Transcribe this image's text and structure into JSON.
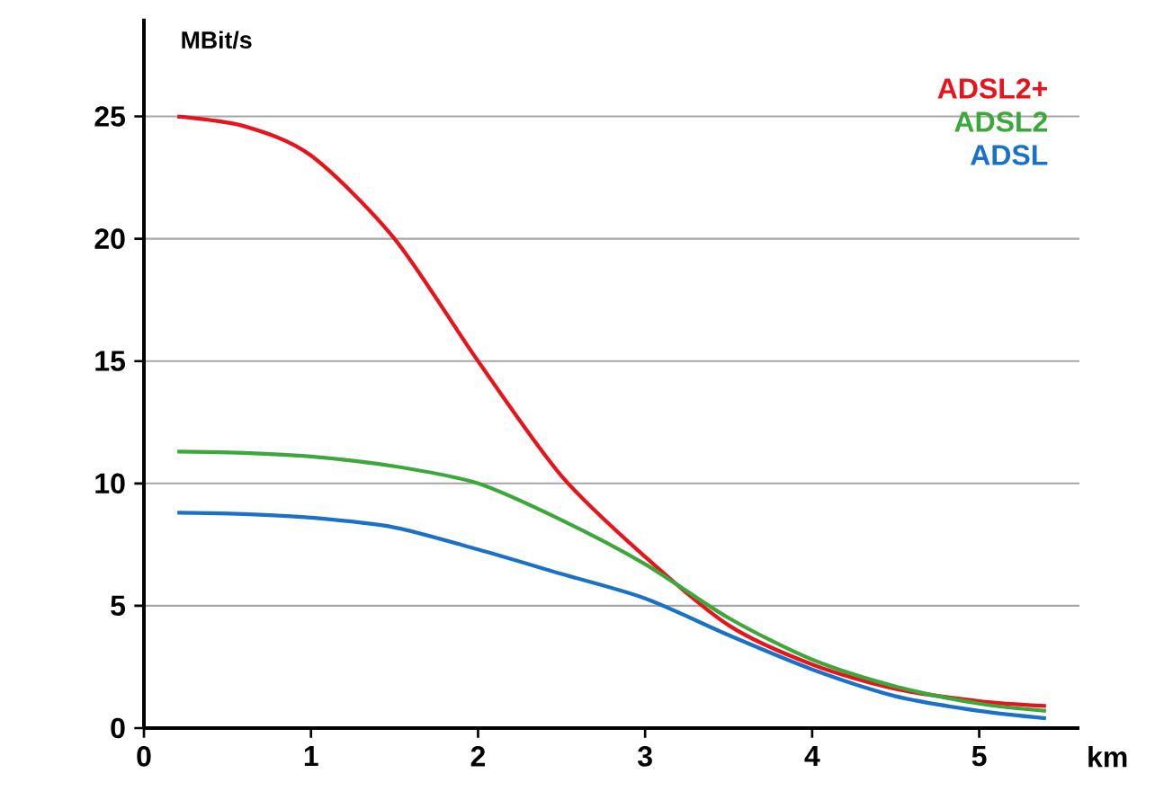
{
  "chart_data": {
    "type": "line",
    "xlabel": "km",
    "ylabel": "MBit/s",
    "xlim": [
      0,
      5.6
    ],
    "ylim": [
      0,
      29
    ],
    "xticks": [
      0,
      1,
      2,
      3,
      4,
      5
    ],
    "yticks": [
      0,
      5,
      10,
      15,
      20,
      25
    ],
    "grid": "y",
    "legend": "top right",
    "marker": "none",
    "line_style": "solid",
    "series": [
      {
        "name": "ADSL2+",
        "color": "#e8141b",
        "x": [
          0.2,
          0.6,
          1,
          1.5,
          2,
          2.5,
          3,
          3.5,
          4,
          4.5,
          5,
          5.4
        ],
        "values": [
          25,
          24.6,
          23.4,
          20,
          15,
          10.3,
          7,
          4.2,
          2.6,
          1.6,
          1.1,
          0.9
        ]
      },
      {
        "name": "ADSL2",
        "color": "#3ca83c",
        "x": [
          0.2,
          0.6,
          1,
          1.5,
          2,
          2.5,
          3,
          3.5,
          4,
          4.5,
          5,
          5.4
        ],
        "values": [
          11.3,
          11.25,
          11.1,
          10.7,
          10,
          8.5,
          6.7,
          4.5,
          2.8,
          1.7,
          1.0,
          0.7
        ]
      },
      {
        "name": "ADSL",
        "color": "#1a72c8",
        "x": [
          0.2,
          0.6,
          1,
          1.5,
          2,
          2.5,
          3,
          3.5,
          4,
          4.5,
          5,
          5.4
        ],
        "values": [
          8.8,
          8.75,
          8.6,
          8.2,
          7.3,
          6.3,
          5.3,
          3.8,
          2.4,
          1.3,
          0.7,
          0.4
        ]
      }
    ]
  }
}
